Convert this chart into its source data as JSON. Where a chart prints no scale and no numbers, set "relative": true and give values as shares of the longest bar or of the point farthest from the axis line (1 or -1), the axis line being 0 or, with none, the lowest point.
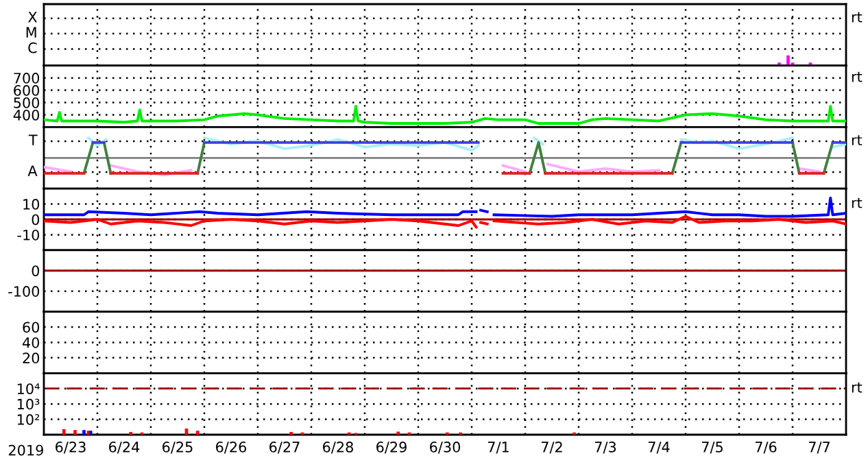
{
  "chart_data": [
    {
      "type": "line",
      "xlim": [
        "2019-06-23T00:00",
        "2019-07-08T00:00"
      ],
      "relative": true,
      "grid": true,
      "tick_labels": false,
      "annotations": [
        "X",
        "M",
        "C",
        "rt"
      ],
      "series": [
        {
          "type": "bar",
          "color": "#ff00ff",
          "x": [
            "2019-07-06T18:00",
            "2019-07-06T22:00",
            "2019-07-07T00:00",
            "2019-07-07T08:00"
          ],
          "values": [
            0.3,
            1,
            0.3,
            0.3
          ]
        }
      ]
    },
    {
      "type": "line",
      "xlim": [
        "2019-06-23T00:00",
        "2019-07-08T00:00"
      ],
      "ylim": [
        300,
        800
      ],
      "yticks": [
        700,
        600,
        500,
        400
      ],
      "grid": true,
      "tick_labels": "y",
      "annotations": [
        "rt"
      ],
      "series": [
        {
          "color": "#00ee00",
          "x": [
            "2019-06-23T00:00",
            "2019-06-23T06:00",
            "2019-06-23T07:00",
            "2019-06-23T08:00",
            "2019-06-23T12:00",
            "2019-06-24T00:00",
            "2019-06-24T12:00",
            "2019-06-24T18:00",
            "2019-06-24T19:00",
            "2019-06-24T20:00",
            "2019-06-25T00:00",
            "2019-06-25T12:00",
            "2019-06-26T00:00",
            "2019-06-26T06:00",
            "2019-06-26T12:00",
            "2019-06-26T18:00",
            "2019-06-27T00:00",
            "2019-06-27T12:00",
            "2019-06-28T00:00",
            "2019-06-28T12:00",
            "2019-06-28T19:00",
            "2019-06-28T20:00",
            "2019-06-28T21:00",
            "2019-06-29T00:00",
            "2019-06-29T12:00",
            "2019-06-30T00:00",
            "2019-06-30T12:00",
            "2019-07-01T00:00",
            "2019-07-01T06:00",
            "2019-07-01T12:00",
            "2019-07-02T00:00",
            "2019-07-02T06:00",
            "2019-07-02T12:00",
            "2019-07-03T00:00",
            "2019-07-03T06:00",
            "2019-07-03T12:00",
            "2019-07-04T00:00",
            "2019-07-04T12:00",
            "2019-07-05T00:00",
            "2019-07-05T12:00",
            "2019-07-06T00:00",
            "2019-07-06T12:00",
            "2019-07-07T00:00",
            "2019-07-07T12:00",
            "2019-07-07T16:00",
            "2019-07-07T17:00",
            "2019-07-07T18:00",
            "2019-07-08T00:00"
          ],
          "values": [
            360,
            350,
            420,
            350,
            350,
            350,
            340,
            350,
            440,
            350,
            350,
            350,
            360,
            390,
            400,
            410,
            400,
            370,
            360,
            350,
            350,
            470,
            350,
            340,
            330,
            330,
            330,
            340,
            370,
            360,
            360,
            330,
            330,
            330,
            360,
            370,
            360,
            350,
            400,
            410,
            390,
            360,
            350,
            350,
            350,
            470,
            350,
            350
          ]
        }
      ]
    },
    {
      "type": "line",
      "xlim": [
        "2019-06-23T00:00",
        "2019-07-08T00:00"
      ],
      "relative": true,
      "grid": true,
      "tick_labels": false,
      "annotations": [
        "T",
        "A",
        "rt"
      ],
      "ref_lines": [
        {
          "axis": "y",
          "value": 0,
          "label": null,
          "color": "#808080"
        }
      ],
      "series": [
        {
          "color": "#aaeeff",
          "x": [
            "2019-06-23T20:00",
            "2019-06-24T00:00",
            "2019-06-24T04:00",
            "2019-06-25T00:00",
            "2019-06-26T00:00",
            "2019-06-26T12:00",
            "2019-06-27T00:00",
            "2019-06-27T12:00",
            "2019-06-28T00:00",
            "2019-06-28T12:00",
            "2019-06-29T00:00",
            "2019-06-29T12:00",
            "2019-06-30T00:00",
            "2019-06-30T12:00",
            "2019-07-01T00:00",
            "2019-07-01T03:00",
            "2019-07-01T12:00",
            "2019-07-02T04:00",
            "2019-07-02T08:00",
            "2019-07-03T00:00",
            "2019-07-04T22:00",
            "2019-07-05T06:00",
            "2019-07-05T12:00",
            "2019-07-06T00:00",
            "2019-07-06T12:00",
            "2019-07-07T00:00",
            "2019-07-07T06:00",
            "2019-07-07T18:00",
            "2019-07-08T00:00"
          ],
          "values": [
            1,
            0.62,
            0.92,
            null,
            1,
            0.69,
            0.85,
            0.46,
            0.62,
            0.92,
            0.54,
            0.69,
            0.62,
            0.77,
            0.38,
            0.62,
            null,
            1,
            0.69,
            null,
            0.92,
            0.77,
            0.85,
            0.46,
            0.69,
            1,
            null,
            0.54,
            0.69
          ]
        },
        {
          "color": "#ffaaff",
          "x": [
            "2019-06-23T00:00",
            "2019-06-23T12:00",
            "2019-06-23T20:00",
            "2019-06-24T06:00",
            "2019-06-24T18:00",
            "2019-06-25T06:00",
            "2019-06-25T18:00",
            "2019-06-26T12:00",
            "2019-07-01T14:00",
            "2019-07-02T00:00",
            "2019-07-02T05:00",
            "2019-07-02T10:00",
            "2019-07-03T00:00",
            "2019-07-03T12:00",
            "2019-07-04T00:00",
            "2019-07-04T12:00",
            "2019-07-05T12:00",
            "2019-07-07T03:00",
            "2019-07-07T12:00"
          ],
          "values": [
            -0.46,
            -0.69,
            null,
            -0.38,
            -0.69,
            -0.85,
            -0.62,
            null,
            -0.38,
            -0.69,
            null,
            -0.31,
            -0.69,
            -0.54,
            -0.69,
            -0.62,
            null,
            -0.54,
            -0.69
          ]
        },
        {
          "color": "#408040",
          "x": [
            "2019-06-23T18:00",
            "2019-06-23T22:00",
            "2019-06-24T00:00",
            "2019-06-24T03:00",
            "2019-06-24T06:00",
            "2019-06-25T00:00",
            "2019-06-25T21:00",
            "2019-06-26T00:00",
            "2019-06-28T00:00",
            "2019-07-02T02:00",
            "2019-07-02T06:00",
            "2019-07-02T09:00",
            "2019-07-03T00:00",
            "2019-07-04T18:00",
            "2019-07-04T22:00",
            "2019-07-06T00:00",
            "2019-07-07T00:00",
            "2019-07-07T03:00",
            "2019-07-07T09:00",
            "2019-07-07T14:00",
            "2019-07-07T18:00"
          ],
          "values": [
            -0.77,
            0.77,
            null,
            0.77,
            -0.77,
            null,
            -0.77,
            0.77,
            null,
            -0.77,
            0.77,
            -0.77,
            null,
            -0.77,
            0.77,
            null,
            0.77,
            -0.77,
            null,
            -0.77,
            0.77
          ]
        },
        {
          "color": "#4040e0",
          "x": [
            "2019-06-23T22:00",
            "2019-06-24T03:00",
            "2019-06-25T00:00",
            "2019-06-26T00:00",
            "2019-07-01T03:00",
            "2019-07-03T00:00",
            "2019-07-04T22:00",
            "2019-07-07T00:00",
            "2019-07-07T09:00",
            "2019-07-07T18:00",
            "2019-07-08T00:00"
          ],
          "values": [
            0.77,
            0.77,
            null,
            0.77,
            0.77,
            null,
            0.77,
            0.77,
            null,
            0.77,
            0.77
          ]
        },
        {
          "color": "#e02020",
          "x": [
            "2019-06-23T00:00",
            "2019-06-23T18:00",
            "2019-06-24T00:00",
            "2019-06-24T06:00",
            "2019-06-25T21:00",
            "2019-06-28T00:00",
            "2019-07-01T14:00",
            "2019-07-02T02:00",
            "2019-07-02T05:00",
            "2019-07-02T09:00",
            "2019-07-04T18:00",
            "2019-07-06T00:00",
            "2019-07-07T03:00",
            "2019-07-07T14:00"
          ],
          "values": [
            -0.77,
            -0.77,
            null,
            -0.77,
            -0.77,
            null,
            -0.77,
            -0.77,
            null,
            -0.77,
            -0.77,
            null,
            -0.77,
            -0.77
          ]
        }
      ]
    },
    {
      "type": "line",
      "xlim": [
        "2019-06-23T00:00",
        "2019-07-08T00:00"
      ],
      "ylim": [
        -20,
        20
      ],
      "yticks": [
        10,
        0,
        -10
      ],
      "grid": true,
      "tick_labels": "y",
      "annotations": [
        "rt"
      ],
      "ref_lines": [
        {
          "axis": "y",
          "value": 0,
          "label": null,
          "color": "#a00000"
        }
      ],
      "series": [
        {
          "color": "#0000ff",
          "x": [
            "2019-06-23T00:00",
            "2019-06-23T18:00",
            "2019-06-23T20:00",
            "2019-06-24T12:00",
            "2019-06-25T00:00",
            "2019-06-25T22:00",
            "2019-06-26T06:00",
            "2019-06-27T00:00",
            "2019-06-27T22:00",
            "2019-06-28T12:00",
            "2019-06-29T12:00",
            "2019-06-30T18:00",
            "2019-06-30T20:00",
            "2019-07-01T02:00",
            "2019-07-01T03:00",
            "2019-07-01T04:00",
            "2019-07-01T07:00",
            "2019-07-01T08:00",
            "2019-07-01T10:00",
            "2019-07-02T12:00",
            "2019-07-03T00:00",
            "2019-07-04T00:00",
            "2019-07-04T12:00",
            "2019-07-05T00:00",
            "2019-07-05T12:00",
            "2019-07-06T00:00",
            "2019-07-06T12:00",
            "2019-07-07T00:00",
            "2019-07-07T16:00",
            "2019-07-07T17:00",
            "2019-07-07T18:00",
            "2019-07-08T00:00"
          ],
          "values": [
            3,
            3,
            5,
            4,
            3,
            5,
            4,
            3,
            5,
            4,
            3,
            3,
            5,
            5,
            null,
            6,
            5,
            null,
            3,
            2,
            3,
            3,
            4,
            5,
            3,
            3,
            2,
            2,
            3,
            14,
            3,
            4
          ]
        },
        {
          "color": "#ff0000",
          "x": [
            "2019-06-23T00:00",
            "2019-06-23T12:00",
            "2019-06-24T00:00",
            "2019-06-24T06:00",
            "2019-06-24T18:00",
            "2019-06-25T06:00",
            "2019-06-25T18:00",
            "2019-06-26T00:00",
            "2019-06-26T12:00",
            "2019-06-27T00:00",
            "2019-06-27T12:00",
            "2019-06-28T00:00",
            "2019-06-28T12:00",
            "2019-06-29T00:00",
            "2019-06-29T12:00",
            "2019-06-30T00:00",
            "2019-06-30T18:00",
            "2019-07-01T00:00",
            "2019-07-01T02:00",
            "2019-07-01T03:00",
            "2019-07-01T04:00",
            "2019-07-01T07:00",
            "2019-07-01T08:00",
            "2019-07-01T10:00",
            "2019-07-02T06:00",
            "2019-07-02T18:00",
            "2019-07-03T06:00",
            "2019-07-03T18:00",
            "2019-07-04T06:00",
            "2019-07-04T18:00",
            "2019-07-05T00:00",
            "2019-07-05T06:00",
            "2019-07-05T18:00",
            "2019-07-06T06:00",
            "2019-07-06T18:00",
            "2019-07-07T06:00",
            "2019-07-07T18:00",
            "2019-07-08T00:00"
          ],
          "values": [
            -1,
            -2,
            0,
            -3,
            -1,
            -2,
            -4,
            -1,
            0,
            -1,
            -3,
            -1,
            -2,
            -1,
            0,
            -1,
            -4,
            -1,
            -5,
            null,
            -2,
            -3,
            null,
            -1,
            -3,
            -2,
            0,
            -3,
            -1,
            -2,
            2,
            -2,
            -1,
            -1,
            0,
            -2,
            -1,
            -3
          ]
        }
      ]
    },
    {
      "type": "line",
      "xlim": [
        "2019-06-23T00:00",
        "2019-07-08T00:00"
      ],
      "ylim": [
        -200,
        100
      ],
      "yticks": [
        0,
        -100
      ],
      "grid": true,
      "tick_labels": "y",
      "ref_lines": [
        {
          "axis": "y",
          "value": 0,
          "label": null,
          "color": "#a00000"
        }
      ]
    },
    {
      "type": "line",
      "xlim": [
        "2019-06-23T00:00",
        "2019-07-08T00:00"
      ],
      "ylim": [
        0,
        80
      ],
      "yticks": [
        60,
        40,
        20
      ],
      "grid": true,
      "tick_labels": "y"
    },
    {
      "type": "line",
      "xlim": [
        "2019-06-23T00:00",
        "2019-07-08T00:00"
      ],
      "ylim": [
        10,
        100000
      ],
      "log": "y",
      "yticks": [
        {
          "value": 10000,
          "label": "10⁴"
        },
        {
          "value": 1000,
          "label": "10³"
        },
        {
          "value": 100,
          "label": "10²"
        }
      ],
      "grid": true,
      "annotations": [
        "2019",
        "rt"
      ],
      "xticks": [
        {
          "value": "2019-06-23T12:00",
          "label": "6/23"
        },
        {
          "value": "2019-06-24T00:00",
          "label": null
        },
        {
          "value": "2019-06-24T12:00",
          "label": "6/24"
        },
        {
          "value": "2019-06-25T00:00",
          "label": null
        },
        {
          "value": "2019-06-25T12:00",
          "label": "6/25"
        },
        {
          "value": "2019-06-26T00:00",
          "label": null
        },
        {
          "value": "2019-06-26T12:00",
          "label": "6/26"
        },
        {
          "value": "2019-06-27T00:00",
          "label": null
        },
        {
          "value": "2019-06-27T12:00",
          "label": "6/27"
        },
        {
          "value": "2019-06-28T00:00",
          "label": null
        },
        {
          "value": "2019-06-28T12:00",
          "label": "6/28"
        },
        {
          "value": "2019-06-29T00:00",
          "label": null
        },
        {
          "value": "2019-06-29T12:00",
          "label": "6/29"
        },
        {
          "value": "2019-06-30T00:00",
          "label": null
        },
        {
          "value": "2019-06-30T12:00",
          "label": "6/30"
        },
        {
          "value": "2019-07-01T00:00",
          "label": null
        },
        {
          "value": "2019-07-01T12:00",
          "label": "7/1"
        },
        {
          "value": "2019-07-02T00:00",
          "label": null
        },
        {
          "value": "2019-07-02T12:00",
          "label": "7/2"
        },
        {
          "value": "2019-07-03T00:00",
          "label": null
        },
        {
          "value": "2019-07-03T12:00",
          "label": "7/3"
        },
        {
          "value": "2019-07-04T00:00",
          "label": null
        },
        {
          "value": "2019-07-04T12:00",
          "label": "7/4"
        },
        {
          "value": "2019-07-05T00:00",
          "label": null
        },
        {
          "value": "2019-07-05T12:00",
          "label": "7/5"
        },
        {
          "value": "2019-07-06T00:00",
          "label": null
        },
        {
          "value": "2019-07-06T12:00",
          "label": "7/6"
        },
        {
          "value": "2019-07-07T00:00",
          "label": null
        },
        {
          "value": "2019-07-07T12:00",
          "label": "7/7"
        }
      ],
      "ref_lines": [
        {
          "axis": "y",
          "value": 10000,
          "label": null,
          "color": "#a00000",
          "line_style": "dashed"
        }
      ],
      "series": [
        {
          "type": "bar",
          "color": "#ff0000",
          "x": [
            "2019-06-23T09:00",
            "2019-06-23T14:00",
            "2019-06-23T20:00",
            "2019-06-24T15:00",
            "2019-06-24T20:00",
            "2019-06-25T16:00",
            "2019-06-25T21:00",
            "2019-06-27T15:00",
            "2019-06-27T20:00",
            "2019-06-28T17:00",
            "2019-06-28T20:00",
            "2019-06-29T15:00",
            "2019-06-29T20:00",
            "2019-06-30T13:00",
            "2019-06-30T19:00",
            "2019-07-02T22:00"
          ],
          "values": [
            23,
            20,
            18,
            15,
            14,
            25,
            18,
            15,
            14,
            14,
            13,
            16,
            14,
            14,
            14,
            14
          ]
        },
        {
          "type": "bar",
          "color": "#0000ff",
          "x": [
            "2019-06-23T18:00",
            "2019-06-23T21:00"
          ],
          "values": [
            20,
            18
          ]
        }
      ]
    }
  ]
}
